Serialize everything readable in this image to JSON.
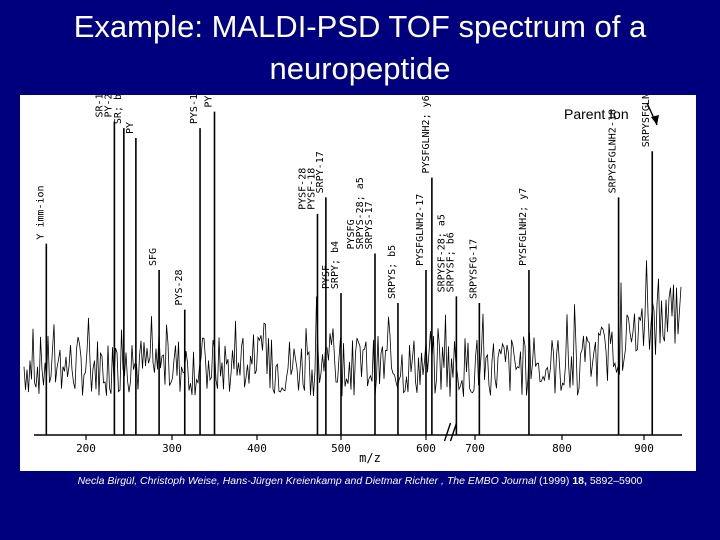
{
  "slide": {
    "title_line1": "Example: MALDI-PSD TOF spectrum of a",
    "title_line2": "neuropeptide",
    "background_color": "#00007f",
    "text_color": "#ffffff"
  },
  "citation": {
    "authors": "Necla Birgül, Christoph Weise, Hans-Jürgen Kreienkamp and Dietmar Richter",
    "separator": " , ",
    "journal": "The EMBO Journal",
    "year": " (1999) ",
    "volume": "18,",
    "pages": " 5892–5900"
  },
  "chart_data": {
    "type": "line",
    "title": "",
    "xlabel": "m/z",
    "ylabel": "",
    "xlim": [
      100,
      960
    ],
    "axis_break_between": [
      600,
      700
    ],
    "xticks": [
      200,
      300,
      400,
      500,
      600,
      700,
      800,
      900
    ],
    "grid": false,
    "legend": "none",
    "annotation": "Parent Ion",
    "peaks": [
      {
        "mz": 136,
        "rel": 0.58,
        "labels": [
          "Y imm-ion"
        ]
      },
      {
        "mz": 233,
        "rel": 0.95,
        "labels": [
          "SR-17",
          "PY-28"
        ]
      },
      {
        "mz": 244,
        "rel": 0.93,
        "labels": [
          "SR; b2"
        ]
      },
      {
        "mz": 258,
        "rel": 0.9,
        "labels": [
          "PY"
        ]
      },
      {
        "mz": 285,
        "rel": 0.5,
        "labels": [
          "SFG"
        ]
      },
      {
        "mz": 315,
        "rel": 0.38,
        "labels": [
          "PYS-28"
        ]
      },
      {
        "mz": 333,
        "rel": 0.93,
        "labels": [
          "PYS-18"
        ]
      },
      {
        "mz": 350,
        "rel": 0.98,
        "labels": [
          "PYS"
        ]
      },
      {
        "mz": 472,
        "rel": 0.67,
        "labels": [
          "PYSF-28",
          "PYSF-18"
        ]
      },
      {
        "mz": 482,
        "rel": 0.72,
        "labels": [
          "SRPY-17"
        ]
      },
      {
        "mz": 500,
        "rel": 0.43,
        "labels": [
          "PYSF",
          "SRPY; b4"
        ]
      },
      {
        "mz": 540,
        "rel": 0.55,
        "labels": [
          "PYSFG",
          "SRPYS-28; a5",
          "SRPYS-17"
        ]
      },
      {
        "mz": 567,
        "rel": 0.4,
        "labels": [
          "SRPYS; b5"
        ]
      },
      {
        "mz": 600,
        "rel": 0.5,
        "labels": [
          "PYSFGLNH2-17"
        ]
      },
      {
        "mz": 612,
        "rel": 0.78,
        "labels": [
          "PYSFGLNH2; y6"
        ]
      },
      {
        "mz": 662,
        "rel": 0.42,
        "labels": [
          "SRPYSF-28; a5",
          "SRPYSF; b6"
        ]
      },
      {
        "mz": 705,
        "rel": 0.4,
        "labels": [
          "SRPYSFG-17"
        ]
      },
      {
        "mz": 762,
        "rel": 0.5,
        "labels": [
          "PYSFGLNH2; y7"
        ]
      },
      {
        "mz": 869,
        "rel": 0.72,
        "labels": [
          "SRPYSFGLNH2-18"
        ]
      },
      {
        "mz": 913,
        "rel": 0.86,
        "labels": [
          "SRPYSFGLNH2"
        ]
      }
    ],
    "colors": {
      "trace": "#000000",
      "panel": "#ffffff"
    }
  }
}
